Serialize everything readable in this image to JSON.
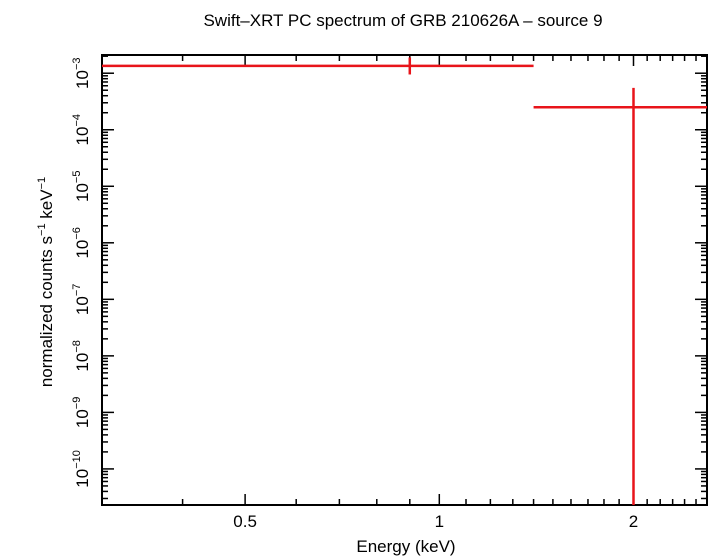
{
  "chart_data": {
    "type": "scatter",
    "title": "Swift–XRT PC spectrum of GRB 210626A – source 9",
    "xlabel": "Energy (keV)",
    "ylabel_main": "normalized counts s",
    "ylabel_exp1": "−1",
    "ylabel_mid": " keV",
    "ylabel_exp2": "−1",
    "x_scale": "log",
    "y_scale": "log",
    "xlim": [
      0.3,
      2.6
    ],
    "ylim": [
      2.3e-11,
      0.0021
    ],
    "x_ticks": [
      {
        "value": 0.5,
        "label": "0.5"
      },
      {
        "value": 1,
        "label": "1"
      },
      {
        "value": 2,
        "label": "2"
      }
    ],
    "y_ticks": [
      {
        "exp": -3,
        "base": "10",
        "sup": "−3"
      },
      {
        "exp": -4,
        "base": "10",
        "sup": "−4"
      },
      {
        "exp": -5,
        "base": "10",
        "sup": "−5"
      },
      {
        "exp": -6,
        "base": "10",
        "sup": "−6"
      },
      {
        "exp": -7,
        "base": "10",
        "sup": "−7"
      },
      {
        "exp": -8,
        "base": "10",
        "sup": "−8"
      },
      {
        "exp": -9,
        "base": "10",
        "sup": "−9"
      },
      {
        "exp": -10,
        "base": "10",
        "sup": "−10"
      }
    ],
    "grid": false,
    "points": [
      {
        "x": 0.9,
        "xlo": 0.3,
        "xhi": 1.4,
        "y": 0.00135,
        "ylo": 0.00095,
        "yhi": 0.0019
      },
      {
        "x": 2.0,
        "xlo": 1.4,
        "xhi": 2.6,
        "y": 0.00025,
        "ylo": 2.3e-11,
        "yhi": 0.00055
      }
    ],
    "color": "#e8141a"
  }
}
